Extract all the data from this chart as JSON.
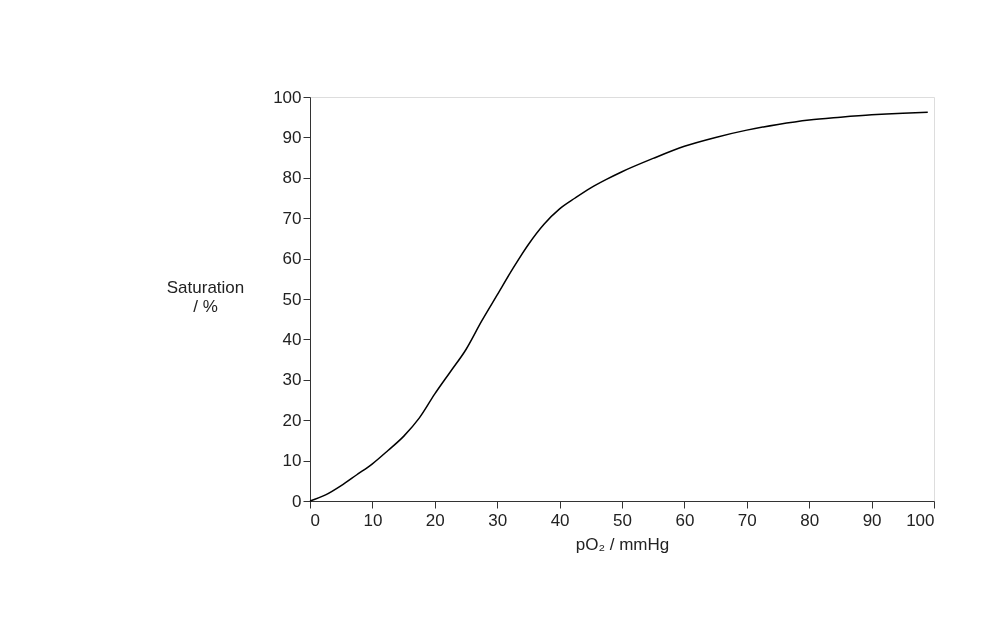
{
  "chart_data": {
    "type": "line",
    "xlabel": "pO₂ / mmHg",
    "ylabel": "Saturation\n/ %",
    "x": [
      0,
      2.5,
      5,
      7.5,
      10,
      12.5,
      15,
      17.5,
      20,
      22.5,
      25,
      27.5,
      30,
      32.5,
      35,
      37.5,
      40,
      42.5,
      45,
      47.5,
      50,
      55,
      60,
      65,
      70,
      75,
      80,
      85,
      90,
      95,
      99
    ],
    "series": [
      {
        "color": "#000000",
        "values": [
          0,
          1.5,
          3.8,
          6.5,
          9.2,
          12.5,
          16,
          20.5,
          26.5,
          32,
          37.5,
          44.5,
          51,
          57.5,
          63.5,
          68.5,
          72.3,
          75,
          77.5,
          79.6,
          81.5,
          84.8,
          87.8,
          90,
          91.8,
          93.2,
          94.3,
          95,
          95.6,
          96,
          96.2
        ]
      }
    ],
    "xlim": [
      0,
      100
    ],
    "xticks": [
      0,
      10,
      20,
      30,
      40,
      50,
      60,
      70,
      80,
      90,
      100
    ],
    "ylim": [
      0,
      100
    ],
    "yticks": [
      0,
      10,
      20,
      30,
      40,
      50,
      60,
      70,
      80,
      90,
      100
    ],
    "grid": false,
    "legend": false,
    "marker": "none",
    "line_style": "solid"
  }
}
